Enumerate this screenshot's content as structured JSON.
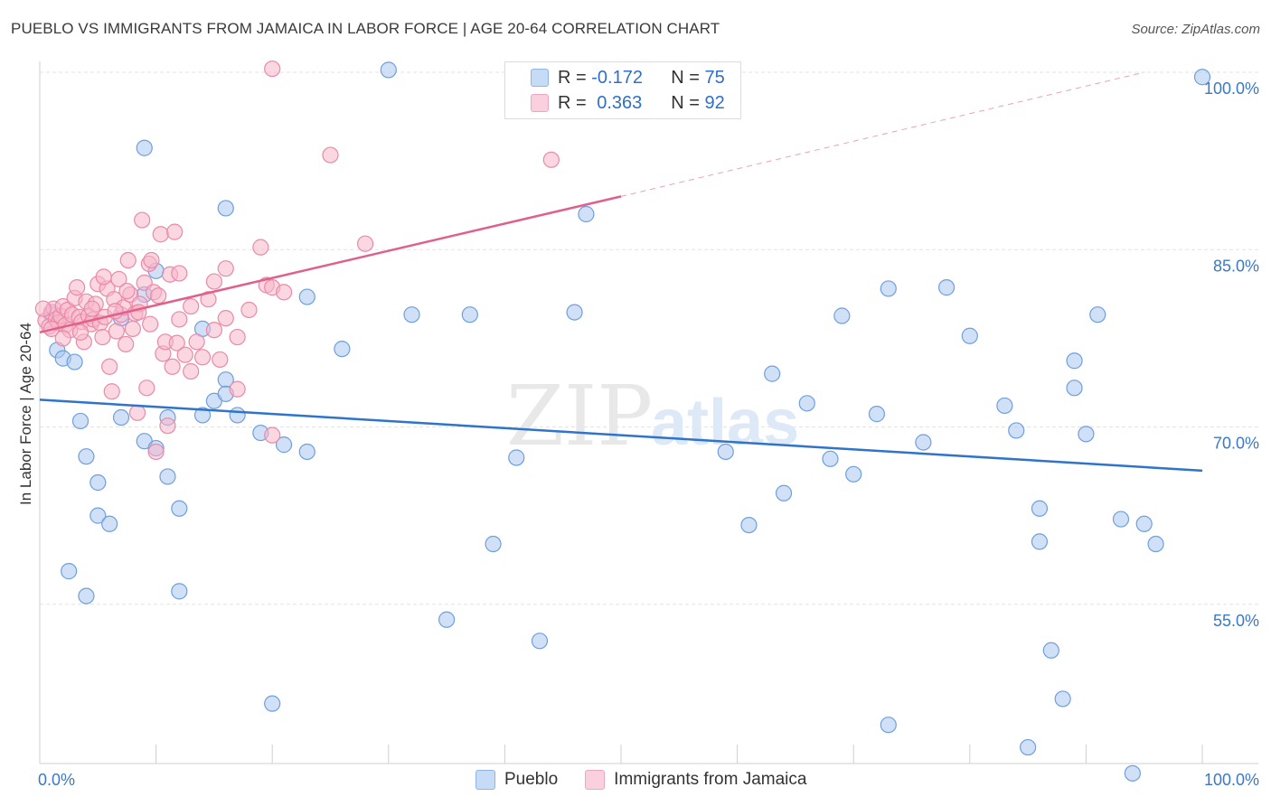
{
  "title": "PUEBLO VS IMMIGRANTS FROM JAMAICA IN LABOR FORCE | AGE 20-64 CORRELATION CHART",
  "source": "Source: ZipAtlas.com",
  "watermark": {
    "zip": "ZIP",
    "atlas": "atlas"
  },
  "legend_top": {
    "rows": [
      {
        "r_label": "R =",
        "r_value": "-0.172",
        "n_label": "N =",
        "n_value": "75"
      },
      {
        "r_label": "R =",
        "r_value": "0.363",
        "n_label": "N =",
        "n_value": "92"
      }
    ]
  },
  "colors": {
    "pueblo_fill": "#a9c8f0",
    "pueblo_stroke": "#6f9fdc",
    "pueblo_line": "#2e73cc",
    "jamaica_fill": "#f7b6cb",
    "jamaica_stroke": "#e98aa8",
    "jamaica_line": "#e0608a",
    "axis_label": "#3b78c8",
    "grid": "#e3e3e3"
  },
  "chart_data": {
    "type": "scatter",
    "title": "PUEBLO VS IMMIGRANTS FROM JAMAICA IN LABOR FORCE | AGE 20-64 CORRELATION CHART",
    "xlabel": "",
    "ylabel": "In Labor Force | Age 20-64",
    "xlim": [
      0,
      100
    ],
    "ylim": [
      40,
      100
    ],
    "x_tick_labels": [
      "0.0%",
      "100.0%"
    ],
    "y_ticks": [
      100,
      85,
      70,
      55
    ],
    "y_tick_labels": [
      "100.0%",
      "85.0%",
      "70.0%",
      "55.0%"
    ],
    "grid": true,
    "legend_placement": "bottom",
    "series": [
      {
        "name": "Pueblo",
        "points": [
          [
            1.5,
            76.5
          ],
          [
            2,
            75.8
          ],
          [
            2.5,
            57.8
          ],
          [
            3,
            75.5
          ],
          [
            3.5,
            70.5
          ],
          [
            4,
            67.5
          ],
          [
            4,
            55.7
          ],
          [
            5,
            65.3
          ],
          [
            5,
            62.5
          ],
          [
            6,
            61.8
          ],
          [
            7,
            79.2
          ],
          [
            7,
            70.8
          ],
          [
            9,
            81.2
          ],
          [
            9,
            93.6
          ],
          [
            9,
            68.8
          ],
          [
            10,
            68.2
          ],
          [
            10,
            83.2
          ],
          [
            11,
            70.8
          ],
          [
            11,
            65.8
          ],
          [
            12,
            63.1
          ],
          [
            12,
            56.1
          ],
          [
            14,
            71
          ],
          [
            14,
            78.3
          ],
          [
            15,
            72.2
          ],
          [
            16,
            74
          ],
          [
            16,
            72.8
          ],
          [
            16,
            88.5
          ],
          [
            17,
            71
          ],
          [
            19,
            69.5
          ],
          [
            20,
            46.6
          ],
          [
            21,
            68.5
          ],
          [
            23,
            81
          ],
          [
            23,
            67.9
          ],
          [
            26,
            76.6
          ],
          [
            32,
            79.5
          ],
          [
            35,
            53.7
          ],
          [
            37,
            79.5
          ],
          [
            39,
            60.1
          ],
          [
            41,
            67.4
          ],
          [
            43,
            51.9
          ],
          [
            46,
            79.7
          ],
          [
            47,
            88
          ],
          [
            59,
            67.9
          ],
          [
            61,
            61.7
          ],
          [
            63,
            74.5
          ],
          [
            64,
            64.4
          ],
          [
            66,
            72
          ],
          [
            68,
            67.3
          ],
          [
            69,
            79.4
          ],
          [
            70,
            66
          ],
          [
            72,
            71.1
          ],
          [
            73,
            44.8
          ],
          [
            73,
            81.7
          ],
          [
            76,
            68.7
          ],
          [
            78,
            81.8
          ],
          [
            80,
            77.7
          ],
          [
            83,
            71.8
          ],
          [
            84,
            69.7
          ],
          [
            85,
            42.9
          ],
          [
            86,
            60.3
          ],
          [
            86,
            63.1
          ],
          [
            87,
            51.1
          ],
          [
            88,
            47
          ],
          [
            89,
            73.3
          ],
          [
            89,
            75.6
          ],
          [
            90,
            69.4
          ],
          [
            91,
            79.5
          ],
          [
            93,
            62.2
          ],
          [
            94,
            40.7
          ],
          [
            95,
            61.8
          ],
          [
            96,
            60.1
          ],
          [
            100,
            99.6
          ],
          [
            42,
            99.5
          ],
          [
            30,
            100.2
          ],
          [
            1,
            79.5
          ]
        ]
      },
      {
        "name": "Immigrants from Jamaica",
        "points": [
          [
            0.5,
            79
          ],
          [
            0.8,
            78.5
          ],
          [
            1,
            79.7
          ],
          [
            1.2,
            80
          ],
          [
            1.4,
            79.1
          ],
          [
            1.6,
            78.8
          ],
          [
            1.8,
            79.4
          ],
          [
            2,
            80.2
          ],
          [
            2.2,
            78.6
          ],
          [
            2.4,
            79.9
          ],
          [
            2.6,
            78.2
          ],
          [
            2.8,
            79.5
          ],
          [
            3,
            80.9
          ],
          [
            3.2,
            81.8
          ],
          [
            3.4,
            79.3
          ],
          [
            3.6,
            78.9
          ],
          [
            3.8,
            77.2
          ],
          [
            4,
            80.6
          ],
          [
            4.2,
            79.4
          ],
          [
            4.4,
            78.7
          ],
          [
            4.6,
            79.1
          ],
          [
            4.8,
            80.4
          ],
          [
            5,
            82.1
          ],
          [
            5.2,
            78.8
          ],
          [
            5.4,
            77.6
          ],
          [
            5.6,
            79.3
          ],
          [
            5.8,
            81.7
          ],
          [
            6,
            75.1
          ],
          [
            6.2,
            73
          ],
          [
            6.4,
            80.8
          ],
          [
            6.6,
            78.1
          ],
          [
            6.8,
            82.5
          ],
          [
            7,
            79.5
          ],
          [
            7.2,
            80.1
          ],
          [
            7.4,
            77
          ],
          [
            7.6,
            84.1
          ],
          [
            7.8,
            81.2
          ],
          [
            8,
            78.3
          ],
          [
            8.2,
            79.6
          ],
          [
            8.4,
            71.2
          ],
          [
            8.6,
            80.4
          ],
          [
            8.8,
            87.5
          ],
          [
            9,
            82.2
          ],
          [
            9.2,
            73.3
          ],
          [
            9.4,
            83.8
          ],
          [
            9.6,
            84.1
          ],
          [
            9.8,
            81.4
          ],
          [
            10,
            67.9
          ],
          [
            10.2,
            81.1
          ],
          [
            10.4,
            86.3
          ],
          [
            10.6,
            76.2
          ],
          [
            10.8,
            77.2
          ],
          [
            11,
            70.1
          ],
          [
            11.2,
            82.9
          ],
          [
            11.4,
            75.1
          ],
          [
            11.6,
            86.5
          ],
          [
            11.8,
            77.1
          ],
          [
            12,
            83
          ],
          [
            12.5,
            76.1
          ],
          [
            13,
            74.7
          ],
          [
            13.5,
            77.2
          ],
          [
            14,
            75.9
          ],
          [
            14.5,
            80.8
          ],
          [
            15,
            82.3
          ],
          [
            15,
            78.2
          ],
          [
            15.5,
            75.7
          ],
          [
            16,
            79.2
          ],
          [
            16,
            83.4
          ],
          [
            17,
            73.2
          ],
          [
            17,
            77.6
          ],
          [
            18,
            79.9
          ],
          [
            19,
            85.2
          ],
          [
            19.5,
            82
          ],
          [
            20,
            69.3
          ],
          [
            20,
            81.8
          ],
          [
            21,
            81.4
          ],
          [
            25,
            93
          ],
          [
            28,
            85.5
          ],
          [
            44,
            92.6
          ],
          [
            20,
            100.3
          ],
          [
            1,
            78.3
          ],
          [
            2,
            77.5
          ],
          [
            3.5,
            78
          ],
          [
            4.5,
            80
          ],
          [
            6.5,
            79.8
          ],
          [
            7.5,
            81.5
          ],
          [
            8.5,
            79.7
          ],
          [
            9.5,
            78.7
          ],
          [
            12,
            79.1
          ],
          [
            13,
            80.2
          ],
          [
            0.3,
            80
          ],
          [
            5.5,
            82.7
          ]
        ]
      }
    ],
    "trendlines": [
      {
        "series": "Pueblo",
        "from": [
          0,
          72.3
        ],
        "to": [
          100,
          66.3
        ],
        "style": "solid"
      },
      {
        "series": "Immigrants from Jamaica",
        "from": [
          0,
          78
        ],
        "to": [
          50,
          89.5
        ],
        "style": "solid"
      },
      {
        "series": "Immigrants from Jamaica",
        "from": [
          50,
          89.5
        ],
        "to": [
          95,
          100
        ],
        "style": "dashed"
      }
    ]
  },
  "bottom_legend": [
    {
      "label": "Pueblo"
    },
    {
      "label": "Immigrants from Jamaica"
    }
  ]
}
